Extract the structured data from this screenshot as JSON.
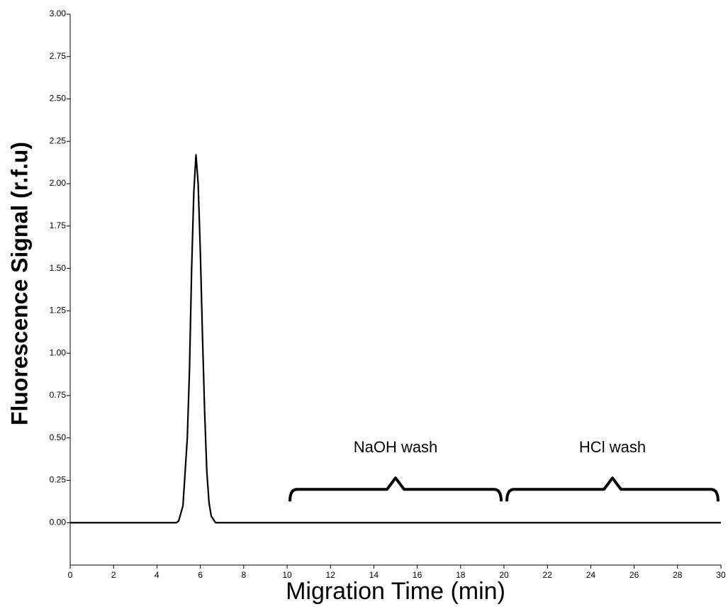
{
  "chart_data": {
    "type": "line",
    "x_label": "Migration Time (min)",
    "y_label": "Fluorescence Signal (r.f.u)",
    "x": [
      0,
      4.9,
      5.0,
      5.2,
      5.4,
      5.5,
      5.6,
      5.7,
      5.8,
      5.9,
      6.0,
      6.1,
      6.2,
      6.3,
      6.4,
      6.5,
      6.7,
      30
    ],
    "series": [
      {
        "color": "#000000",
        "values": [
          0,
          0,
          0.01,
          0.1,
          0.5,
          0.9,
          1.5,
          1.95,
          2.17,
          2.0,
          1.6,
          1.1,
          0.65,
          0.3,
          0.12,
          0.04,
          0,
          0
        ]
      }
    ],
    "xlim": [
      0,
      30
    ],
    "xticks": [
      0,
      2,
      4,
      6,
      8,
      10,
      12,
      14,
      16,
      18,
      20,
      22,
      24,
      26,
      28,
      30
    ],
    "ylim": [
      -0.25,
      3.0
    ],
    "yticks": [
      {
        "value": 0,
        "label": "0.00"
      },
      {
        "value": 0.25,
        "label": "0.25"
      },
      {
        "value": 0.5,
        "label": "0.50"
      },
      {
        "value": 0.75,
        "label": "0.75"
      },
      {
        "value": 1,
        "label": "1.00"
      },
      {
        "value": 1.25,
        "label": "1.25"
      },
      {
        "value": 1.5,
        "label": "1.50"
      },
      {
        "value": 1.75,
        "label": "1.75"
      },
      {
        "value": 2,
        "label": "2.00"
      },
      {
        "value": 2.25,
        "label": "2.25"
      },
      {
        "value": 2.5,
        "label": "2.50"
      },
      {
        "value": 2.75,
        "label": "2.75"
      },
      {
        "value": 3,
        "label": "3.00"
      }
    ],
    "annotations": [
      {
        "text": "NaOH wash",
        "x_range": [
          10,
          20
        ]
      },
      {
        "text": "HCl wash",
        "x_range": [
          20,
          30
        ]
      }
    ]
  }
}
